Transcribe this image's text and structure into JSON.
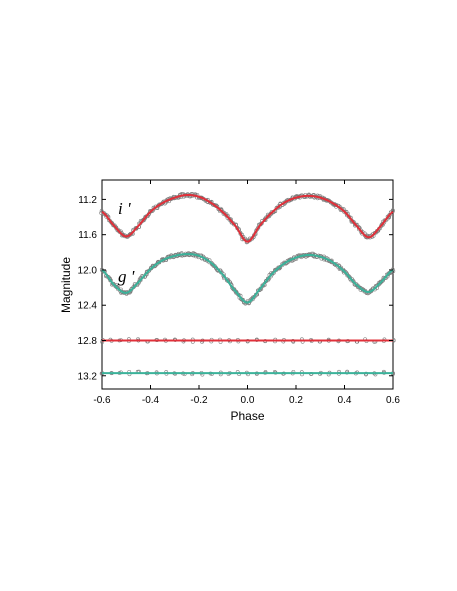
{
  "chart_data": {
    "type": "scatter",
    "title": "",
    "xlabel": "Phase",
    "ylabel": "Magnitude",
    "xlim": [
      -0.6,
      0.6
    ],
    "ylim": [
      13.35,
      10.98
    ],
    "y_inverted": true,
    "x_ticks": [
      "-0.6",
      "-0.4",
      "-0.2",
      "0.0",
      "0.2",
      "0.4",
      "0.6"
    ],
    "y_ticks": [
      "11.2",
      "11.6",
      "12.0",
      "12.4",
      "12.8",
      "13.2"
    ],
    "grid": false,
    "legend": "none",
    "annotations": [
      {
        "text": "i '",
        "band": "i"
      },
      {
        "text": "g '",
        "band": "g"
      }
    ],
    "series": [
      {
        "band": "i",
        "kind": "light_curve",
        "color": "#e0303a",
        "observations_color": "#7a7a7a",
        "phase": [
          -0.6,
          -0.55,
          -0.5,
          -0.45,
          -0.4,
          -0.35,
          -0.3,
          -0.25,
          -0.2,
          -0.15,
          -0.1,
          -0.05,
          0.0,
          0.05,
          0.1,
          0.15,
          0.2,
          0.25,
          0.3,
          0.35,
          0.4,
          0.45,
          0.5,
          0.55,
          0.6
        ],
        "magnitude": [
          11.34,
          11.5,
          11.62,
          11.5,
          11.34,
          11.24,
          11.18,
          11.15,
          11.17,
          11.24,
          11.35,
          11.5,
          11.68,
          11.5,
          11.35,
          11.24,
          11.18,
          11.16,
          11.18,
          11.24,
          11.34,
          11.5,
          11.63,
          11.5,
          11.34
        ]
      },
      {
        "band": "g",
        "kind": "light_curve",
        "color": "#3bb29a",
        "observations_color": "#7a7a7a",
        "phase": [
          -0.6,
          -0.55,
          -0.5,
          -0.45,
          -0.4,
          -0.35,
          -0.3,
          -0.25,
          -0.2,
          -0.15,
          -0.1,
          -0.05,
          0.0,
          0.05,
          0.1,
          0.15,
          0.2,
          0.25,
          0.3,
          0.35,
          0.4,
          0.45,
          0.5,
          0.55,
          0.6
        ],
        "magnitude": [
          12.0,
          12.17,
          12.26,
          12.14,
          11.99,
          11.89,
          11.84,
          11.82,
          11.84,
          11.92,
          12.06,
          12.24,
          12.37,
          12.22,
          12.05,
          11.93,
          11.86,
          11.83,
          11.85,
          11.91,
          12.02,
          12.17,
          12.25,
          12.14,
          12.0
        ]
      },
      {
        "band": "i",
        "kind": "residuals",
        "color": "#e0303a",
        "observations_color": "#7a7a7a",
        "phase": [
          -0.6,
          -0.3,
          0.0,
          0.3,
          0.6
        ],
        "magnitude": [
          12.8,
          12.8,
          12.8,
          12.8,
          12.8
        ]
      },
      {
        "band": "g",
        "kind": "residuals",
        "color": "#3bb29a",
        "observations_color": "#7a7a7a",
        "phase": [
          -0.6,
          -0.3,
          0.0,
          0.3,
          0.6
        ],
        "magnitude": [
          13.17,
          13.17,
          13.17,
          13.17,
          13.17
        ]
      }
    ]
  }
}
